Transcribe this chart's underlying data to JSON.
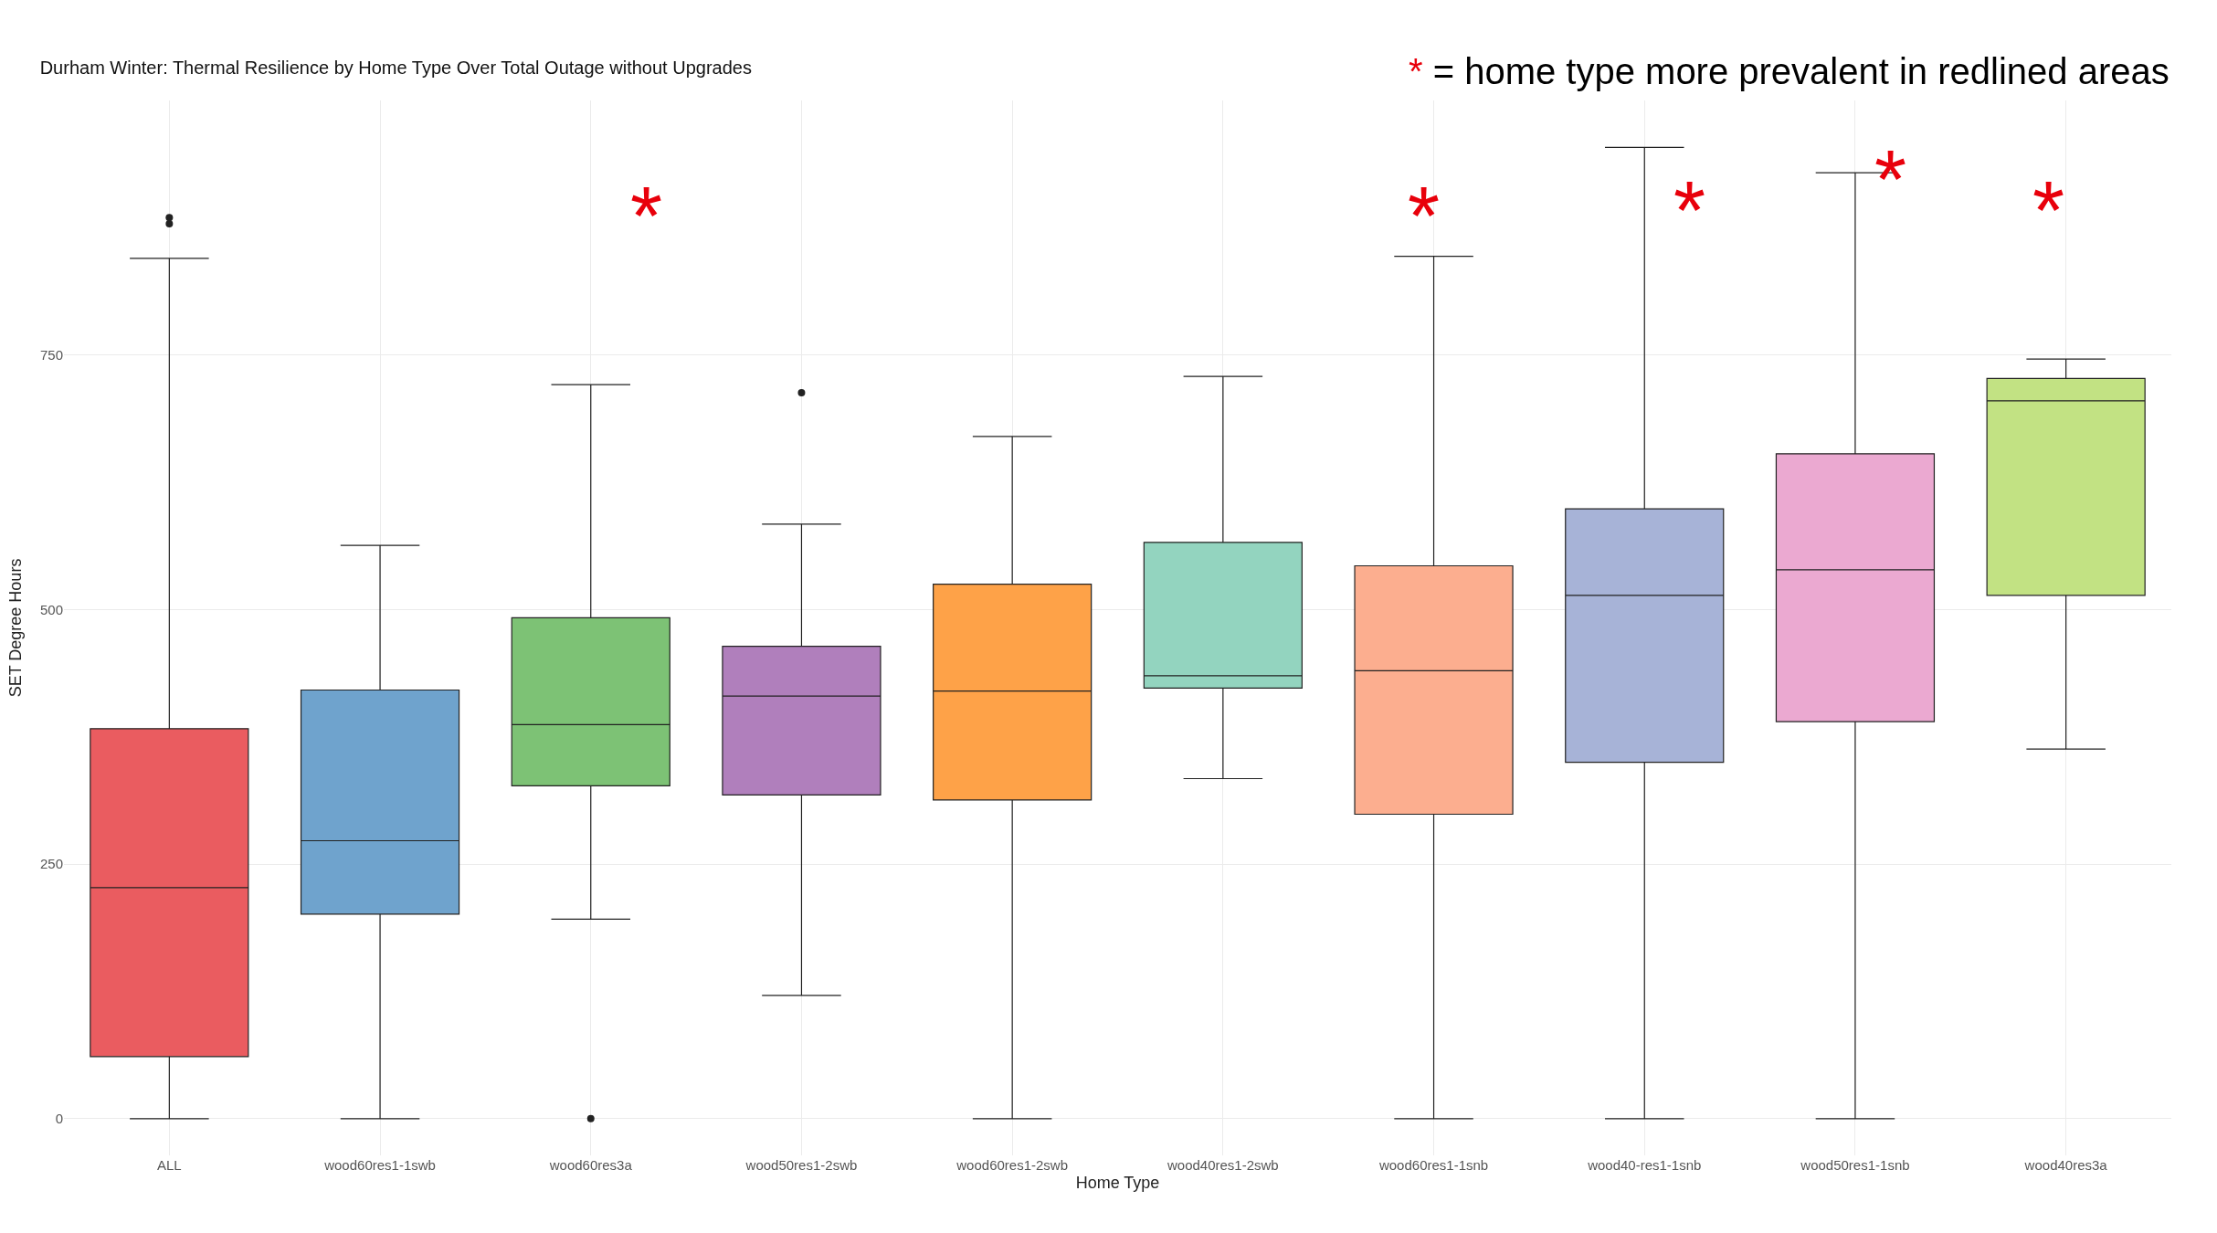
{
  "chart_data": {
    "type": "box",
    "title": "Durham Winter: Thermal Resilience by Home Type Over Total Outage without Upgrades",
    "xlabel": "Home Type",
    "ylabel": "SET Degree Hours",
    "categories": [
      "ALL",
      "wood60res1-1swb",
      "wood60res3a",
      "wood50res1-2swb",
      "wood60res1-2swb",
      "wood40res1-2swb",
      "wood60res1-1snb",
      "wood40-res1-1snb",
      "wood50res1-1snb",
      "wood40res3a"
    ],
    "colors": [
      "#ea5c60",
      "#6fa3cd",
      "#7dc275",
      "#b07fbc",
      "#fea248",
      "#93d4bf",
      "#fcae8f",
      "#a7b3d7",
      "#eba9d1",
      "#c2e283"
    ],
    "boxes": [
      {
        "low": 0,
        "q1": 61,
        "median": 227,
        "q3": 383,
        "high": 845,
        "outliers": [
          879,
          885
        ]
      },
      {
        "low": 0,
        "q1": 201,
        "median": 273,
        "q3": 421,
        "high": 563
      },
      {
        "low": 196,
        "q1": 327,
        "median": 387,
        "q3": 492,
        "high": 721,
        "outliers": [
          0
        ]
      },
      {
        "low": 121,
        "q1": 318,
        "median": 415,
        "q3": 464,
        "high": 584,
        "outliers": [
          713
        ]
      },
      {
        "low": 0,
        "q1": 313,
        "median": 420,
        "q3": 525,
        "high": 670
      },
      {
        "low": 334,
        "q1": 423,
        "median": 435,
        "q3": 566,
        "high": 729
      },
      {
        "low": 0,
        "q1": 299,
        "median": 440,
        "q3": 543,
        "high": 847
      },
      {
        "low": 0,
        "q1": 350,
        "median": 514,
        "q3": 599,
        "high": 954
      },
      {
        "low": 0,
        "q1": 390,
        "median": 539,
        "q3": 653,
        "high": 929
      },
      {
        "low": 363,
        "q1": 514,
        "median": 705,
        "q3": 727,
        "high": 746
      }
    ],
    "ylim": [
      -36,
      1000
    ],
    "yticks": [
      0,
      250,
      500,
      750
    ],
    "grid": true,
    "annotations": [
      "* = home type more prevalent in redlined areas",
      "*",
      "*",
      "*",
      "*",
      "*"
    ]
  }
}
